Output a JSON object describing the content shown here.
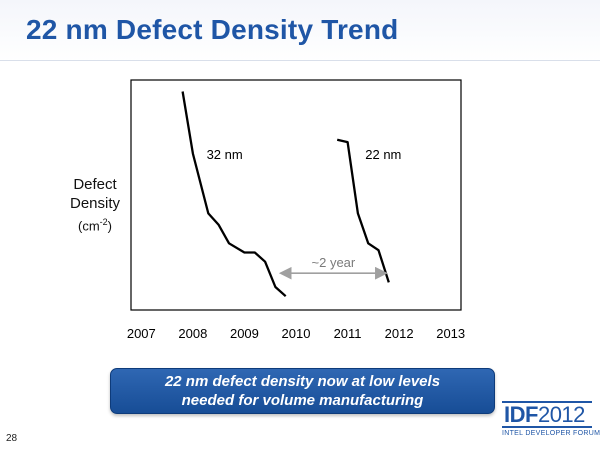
{
  "slide": {
    "title": "22 nm Defect Density Trend",
    "page_number": "28",
    "callout_line1": "22 nm defect density now at low levels",
    "callout_line2": "needed for volume manufacturing",
    "brand_prefix": "IDF",
    "brand_year": "2012",
    "brand_subtitle": "INTEL DEVELOPER FORUM",
    "title_color": "#1f56a6",
    "callout_color": "#1f56a6"
  },
  "chart_data": {
    "type": "line",
    "title": "",
    "ylabel_line1": "Defect",
    "ylabel_line2": "Density",
    "ylabel_unit": "(cm",
    "ylabel_unit_exp": "-2",
    "ylabel_unit_close": ")",
    "xlim": [
      2006.8,
      2013.2
    ],
    "ylim": [
      0,
      100
    ],
    "x_ticks": [
      2007,
      2008,
      2009,
      2010,
      2011,
      2012,
      2013
    ],
    "x_tick_labels": [
      "2007",
      "2008",
      "2009",
      "2010",
      "2011",
      "2012",
      "2013"
    ],
    "grid": false,
    "y_tick_labels_shown": false,
    "series": [
      {
        "name": "32 nm",
        "x": [
          2007.8,
          2008.0,
          2008.3,
          2008.5,
          2008.7,
          2009.0,
          2009.2,
          2009.4,
          2009.6,
          2009.8
        ],
        "y": [
          95,
          68,
          42,
          37,
          29,
          25,
          25,
          21,
          10,
          6
        ]
      },
      {
        "name": "22 nm",
        "x": [
          2010.8,
          2011.0,
          2011.2,
          2011.4,
          2011.6,
          2011.8
        ],
        "y": [
          74,
          73,
          42,
          29,
          26,
          12
        ]
      }
    ],
    "annotations": [
      {
        "text": "~2 year",
        "x_from": 2009.7,
        "x_to": 2011.75,
        "y": 16
      }
    ]
  }
}
